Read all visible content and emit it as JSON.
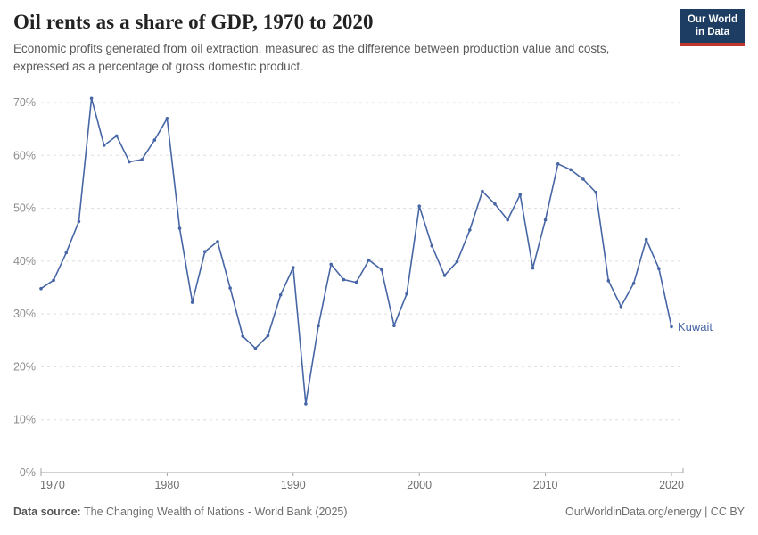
{
  "header": {
    "title": "Oil rents as a share of GDP, 1970 to 2020",
    "subtitle": "Economic profits generated from oil extraction, measured as the difference between production value and costs, expressed as a percentage of gross domestic product.",
    "logo": {
      "line1": "Our World",
      "line2": "in Data",
      "bg": "#1d3d63",
      "accent": "#c0362c"
    }
  },
  "chart_data": {
    "type": "line",
    "title": "Oil rents as a share of GDP, 1970 to 2020",
    "xlabel": "",
    "ylabel": "",
    "xlim": [
      1970,
      2020
    ],
    "ylim": [
      0,
      70
    ],
    "xticks": [
      1970,
      1980,
      1990,
      2000,
      2010,
      2020
    ],
    "yticks": [
      0,
      10,
      20,
      30,
      40,
      50,
      60,
      70
    ],
    "ytick_suffix": "%",
    "grid": "horizontal-dashed",
    "legend_position": "end-of-line-label",
    "series": [
      {
        "name": "Kuwait",
        "color": "#4766a5",
        "x": [
          1970,
          1971,
          1972,
          1973,
          1974,
          1975,
          1976,
          1977,
          1978,
          1979,
          1980,
          1981,
          1982,
          1983,
          1984,
          1985,
          1986,
          1987,
          1988,
          1989,
          1990,
          1991,
          1992,
          1993,
          1994,
          1995,
          1996,
          1997,
          1998,
          1999,
          2000,
          2001,
          2002,
          2003,
          2004,
          2005,
          2006,
          2007,
          2008,
          2009,
          2010,
          2011,
          2012,
          2013,
          2014,
          2015,
          2016,
          2017,
          2018,
          2019,
          2020
        ],
        "values": [
          34.8,
          36.4,
          41.6,
          47.5,
          70.8,
          61.9,
          63.7,
          58.8,
          59.2,
          62.9,
          67.0,
          46.2,
          32.2,
          41.8,
          43.7,
          34.9,
          25.8,
          23.5,
          25.9,
          33.6,
          38.8,
          13.0,
          27.8,
          39.4,
          36.5,
          36.0,
          40.2,
          38.4,
          27.8,
          33.8,
          50.4,
          42.9,
          37.3,
          39.9,
          45.9,
          53.2,
          50.8,
          47.8,
          52.6,
          38.7,
          47.8,
          58.4,
          57.3,
          55.5,
          53.0,
          36.3,
          31.4,
          35.8,
          44.1,
          38.6,
          27.6
        ]
      }
    ]
  },
  "colors": {
    "line": "#4766a5",
    "grid": "#dddddd",
    "axis": "#a3a3a3",
    "y_tick_text": "#8c8c8c",
    "x_tick_text": "#6e6e6e"
  },
  "footer": {
    "datasource_label": "Data source:",
    "datasource": " The Changing Wealth of Nations - World Bank (2025)",
    "credit": "OurWorldinData.org/energy | CC BY"
  }
}
